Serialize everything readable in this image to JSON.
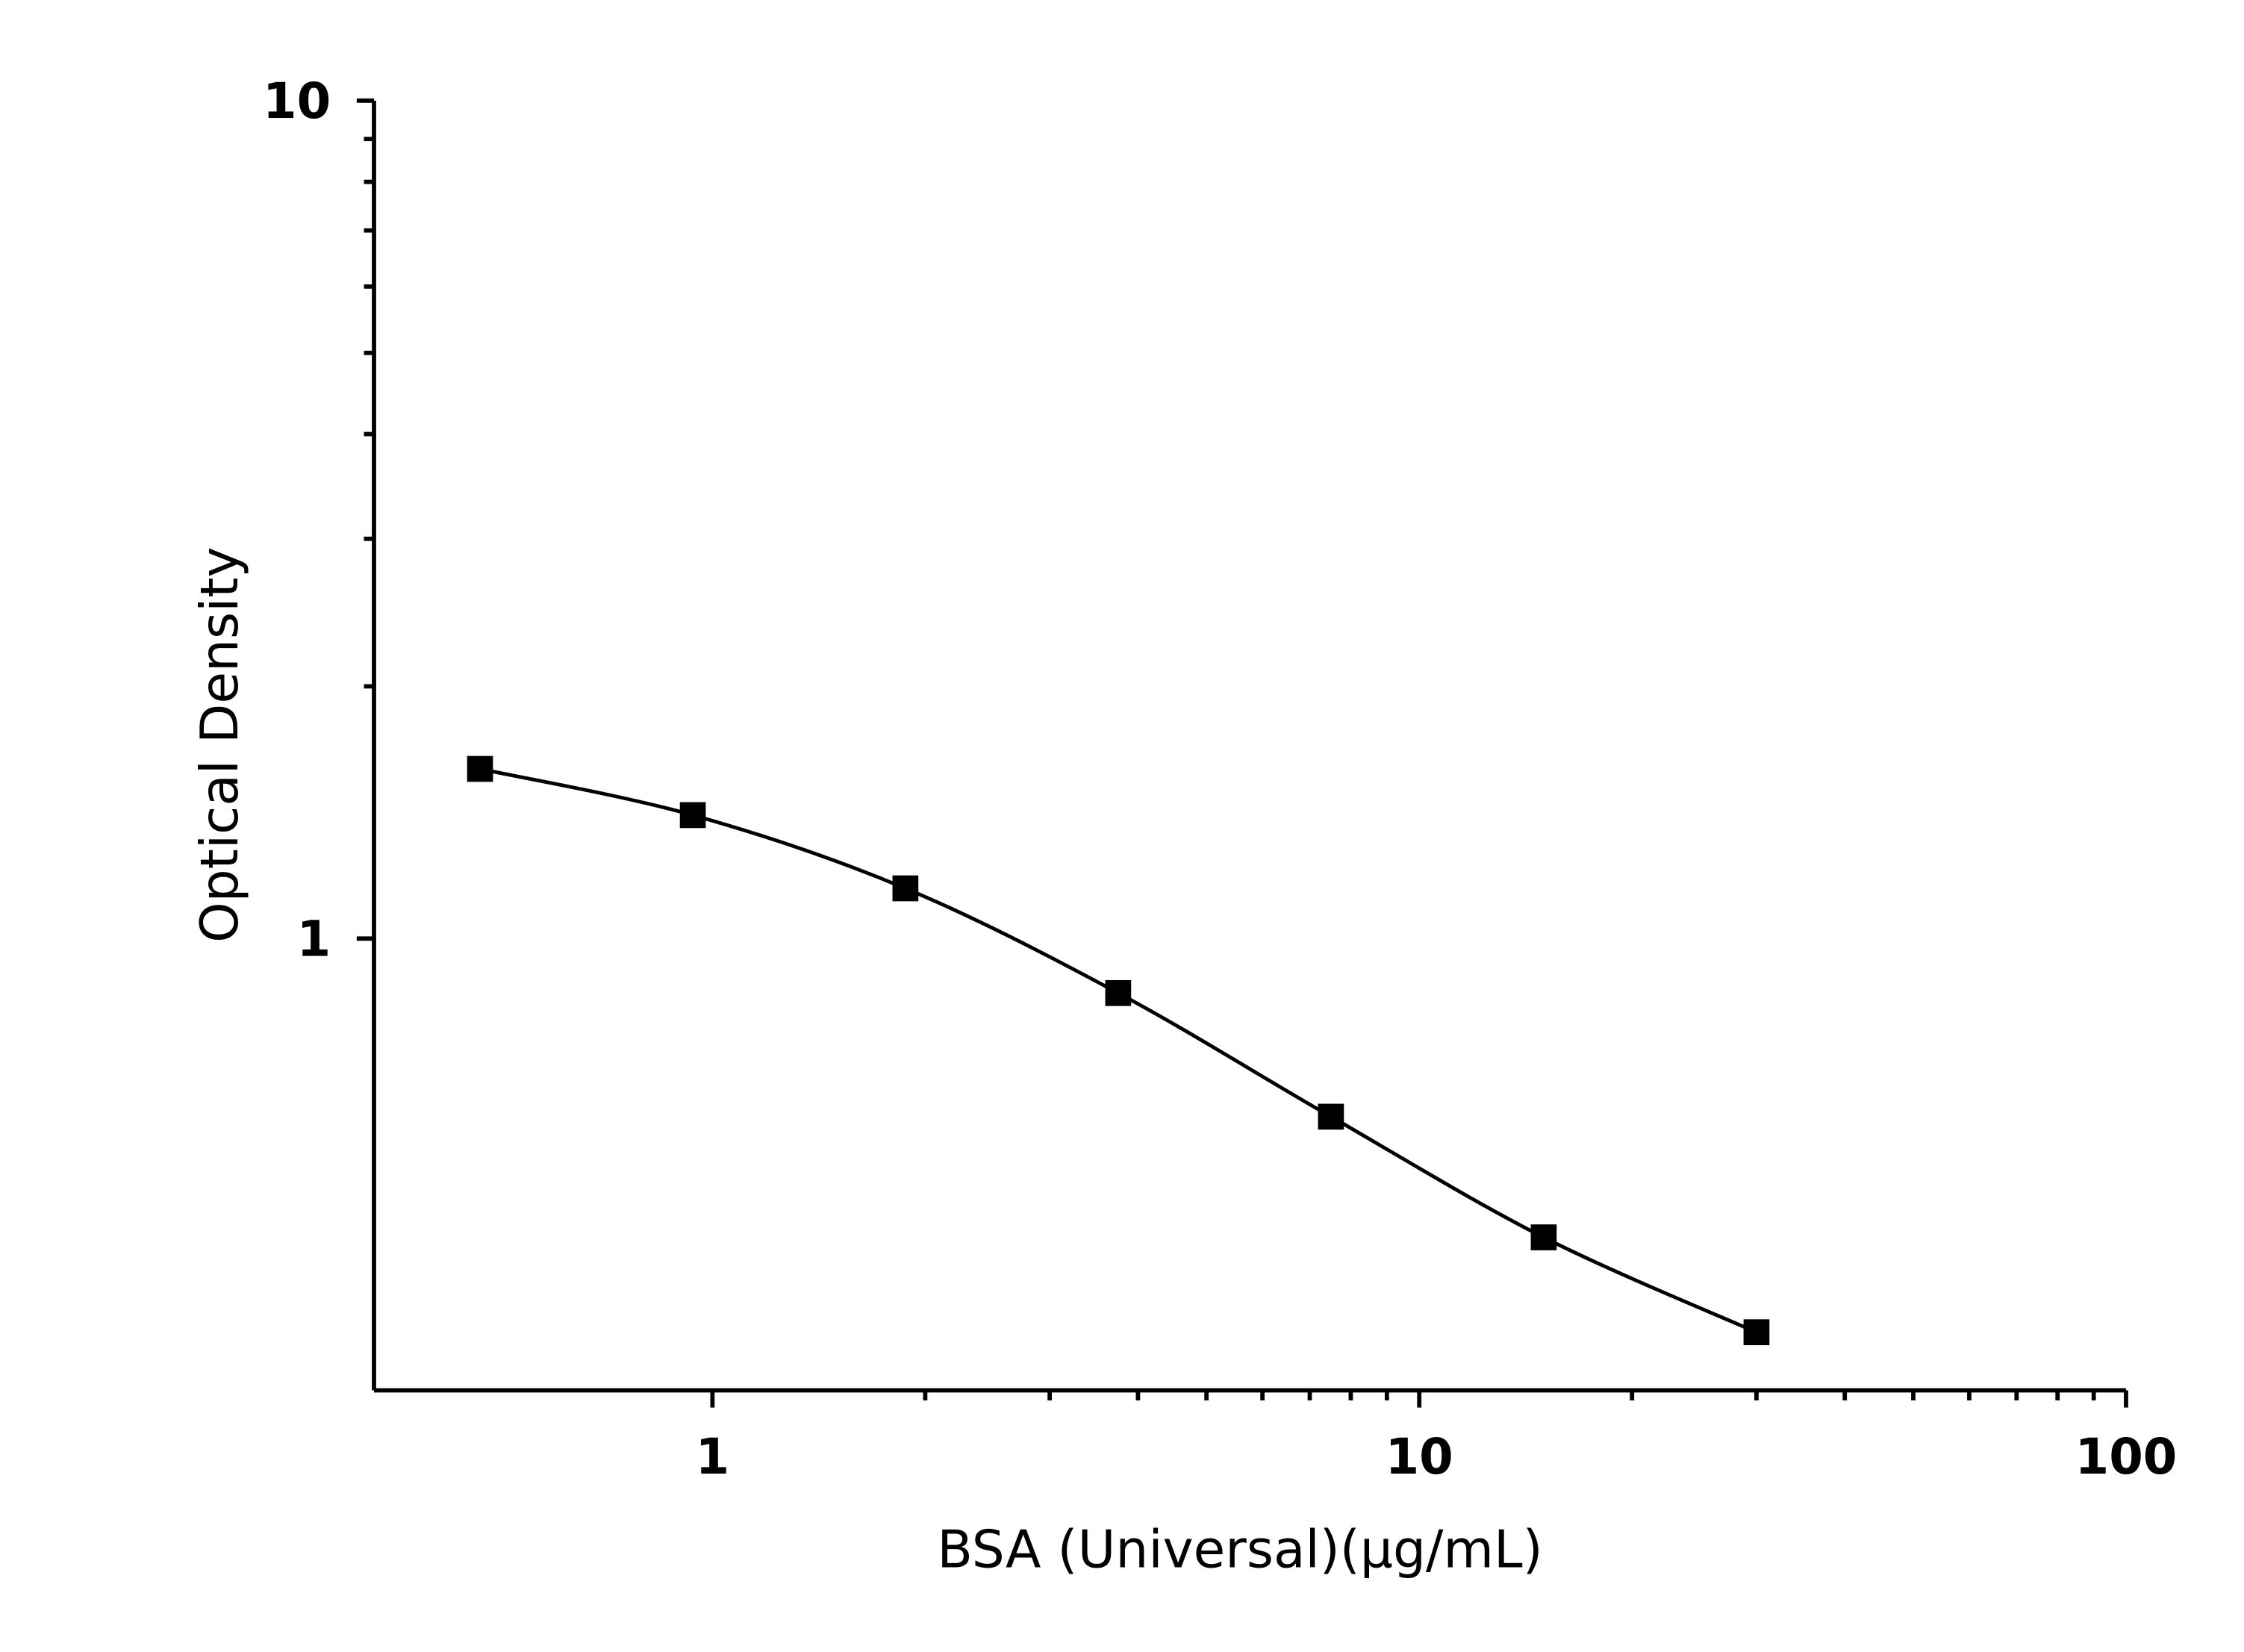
{
  "chart_data": {
    "type": "scatter-line",
    "x_label": "BSA (Universal)(μg/mL)",
    "y_label": "Optical Density",
    "x": [
      0.469,
      0.938,
      1.875,
      3.75,
      7.5,
      15,
      30
    ],
    "values": [
      1.594,
      1.404,
      1.148,
      0.861,
      0.613,
      0.44,
      0.339
    ],
    "color": "#000000",
    "xlog": true,
    "ylog": true,
    "xlim": [
      0.332,
      100
    ],
    "ylim": [
      0.289,
      10
    ],
    "xticks": [
      1,
      10,
      100
    ],
    "yticks": [
      1,
      10
    ],
    "xminorticks": [
      2,
      3,
      4,
      5,
      6,
      7,
      8,
      9,
      20,
      30,
      40,
      50,
      60,
      70,
      80,
      90
    ],
    "yminorticks": [
      2,
      3,
      4,
      5,
      6,
      7,
      8,
      9
    ]
  }
}
